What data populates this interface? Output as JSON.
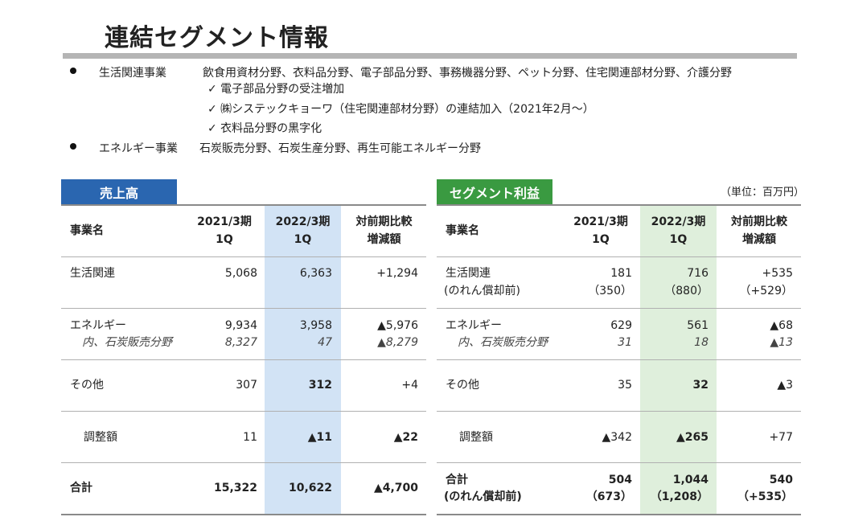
{
  "title": "連結セグメント情報",
  "segments": [
    {
      "name": "生活関連事業",
      "desc": "飲食用資材分野、衣料品分野、電子部品分野、事務機器分野、ペット分野、住宅関連部材分野、介護分野"
    },
    {
      "name": "エネルギー事業",
      "desc": "石炭販売分野、石炭生産分野、再生可能エネルギー分野"
    }
  ],
  "checks": [
    "✓ 電子部品分野の受注増加",
    "✓ ㈱システックキョーワ（住宅関連部材分野）の連結加入（2021年2月～）",
    "✓ 衣料品分野の黒字化"
  ],
  "colors": {
    "blue_label": "#2a66b0",
    "green_label": "#3a9a41",
    "blue_highlight": "#d2e3f5",
    "green_highlight": "#dfefdc"
  },
  "sales": {
    "label": "売上高",
    "headers": {
      "name": "事業名",
      "y2021": [
        "2021/3期",
        "1Q"
      ],
      "y2022": [
        "2022/3期",
        "1Q"
      ],
      "diff": [
        "対前期比較",
        "増減額"
      ]
    },
    "rows": {
      "living": {
        "name": "生活関連",
        "y2021": "5,068",
        "y2022": "6,363",
        "diff": "+1,294"
      },
      "energy": {
        "name": "エネルギー",
        "y2021": "9,934",
        "y2022": "3,958",
        "diff": "▲5,976"
      },
      "energy_sub": {
        "name": "内、石炭販売分野",
        "y2021": "8,327",
        "y2022": "47",
        "diff": "▲8,279"
      },
      "other": {
        "name": "その他",
        "y2021": "307",
        "y2022": "312",
        "diff": "+4"
      },
      "adjust": {
        "name": "調整額",
        "y2021": "11",
        "y2022": "▲11",
        "diff": "▲22"
      },
      "total": {
        "name": "合計",
        "y2021": "15,322",
        "y2022": "10,622",
        "diff": "▲4,700"
      }
    }
  },
  "profit": {
    "label": "セグメント利益",
    "unit": "（単位：百万円）",
    "headers": {
      "name": "事業名",
      "y2021": [
        "2021/3期",
        "1Q"
      ],
      "y2022": [
        "2022/3期",
        "1Q"
      ],
      "diff": [
        "対前期比較",
        "増減額"
      ]
    },
    "rows": {
      "living": {
        "name": "生活関連",
        "name2": "(のれん償却前)",
        "y2021": "181",
        "y2021b": "（350）",
        "y2022": "716",
        "y2022b": "（880）",
        "diff": "+535",
        "diffb": "（+529）"
      },
      "energy": {
        "name": "エネルギー",
        "y2021": "629",
        "y2022": "561",
        "diff": "▲68"
      },
      "energy_sub": {
        "name": "内、石炭販売分野",
        "y2021": "31",
        "y2022": "18",
        "diff": "▲13"
      },
      "other": {
        "name": "その他",
        "y2021": "35",
        "y2022": "32",
        "diff": "▲3"
      },
      "adjust": {
        "name": "調整額",
        "y2021": "▲342",
        "y2022": "▲265",
        "diff": "+77"
      },
      "total": {
        "name": "合計",
        "name2": "(のれん償却前)",
        "y2021": "504",
        "y2021b": "（673）",
        "y2022": "1,044",
        "y2022b": "（1,208）",
        "diff": "540",
        "diffb": "（+535）"
      }
    }
  }
}
